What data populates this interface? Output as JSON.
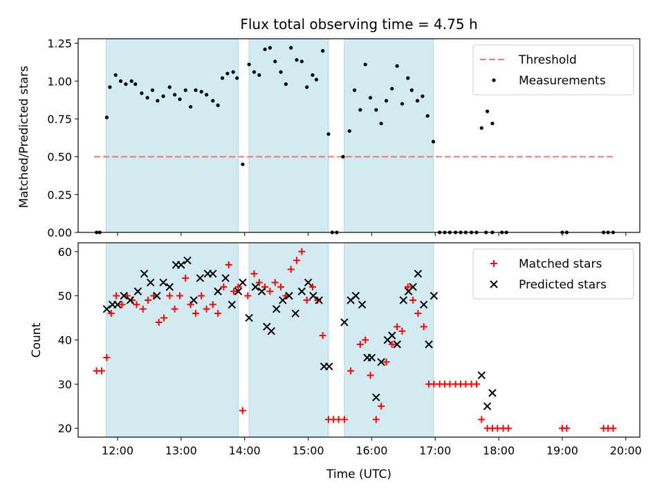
{
  "chart_data": {
    "title": "Flux total observing time = 4.75 h",
    "xlabel": "Time (UTC)",
    "x_ticks": [
      "12:00",
      "13:00",
      "14:00",
      "15:00",
      "16:00",
      "17:00",
      "18:00",
      "19:00",
      "20:00"
    ],
    "x_range_hours": [
      11.38,
      20.22
    ],
    "shaded_intervals_hours": [
      [
        11.82,
        13.9
      ],
      [
        14.07,
        15.32
      ],
      [
        15.57,
        16.97
      ]
    ],
    "shade_color": "#add8e6",
    "panels": [
      {
        "type": "scatter",
        "ylabel": "Matched/Predicted stars",
        "ylim": [
          0,
          1.28
        ],
        "y_ticks": [
          "0.00",
          "0.25",
          "0.50",
          "0.75",
          "1.00",
          "1.25"
        ],
        "legend_position": "upper right",
        "threshold": {
          "name": "Threshold",
          "value": 0.5,
          "x_range_hours": [
            11.63,
            19.83
          ],
          "color": "#ff6f6f"
        },
        "series": [
          {
            "name": "Measurements",
            "color": "#000000",
            "marker": "dot",
            "points": [
              [
                11.67,
                0.0
              ],
              [
                11.72,
                0.0
              ],
              [
                11.83,
                0.76
              ],
              [
                11.88,
                0.96
              ],
              [
                11.97,
                1.04
              ],
              [
                12.05,
                1.0
              ],
              [
                12.13,
                0.98
              ],
              [
                12.22,
                1.0
              ],
              [
                12.28,
                0.98
              ],
              [
                12.38,
                0.92
              ],
              [
                12.47,
                0.89
              ],
              [
                12.55,
                0.94
              ],
              [
                12.63,
                0.87
              ],
              [
                12.72,
                0.9
              ],
              [
                12.82,
                0.96
              ],
              [
                12.9,
                0.91
              ],
              [
                12.98,
                0.88
              ],
              [
                13.07,
                0.94
              ],
              [
                13.15,
                0.83
              ],
              [
                13.23,
                0.94
              ],
              [
                13.32,
                0.93
              ],
              [
                13.4,
                0.91
              ],
              [
                13.5,
                0.87
              ],
              [
                13.58,
                0.84
              ],
              [
                13.65,
                1.02
              ],
              [
                13.73,
                1.05
              ],
              [
                13.82,
                1.06
              ],
              [
                13.88,
                1.02
              ],
              [
                13.97,
                0.45
              ],
              [
                14.07,
                1.11
              ],
              [
                14.15,
                1.06
              ],
              [
                14.23,
                1.04
              ],
              [
                14.32,
                1.21
              ],
              [
                14.4,
                1.22
              ],
              [
                14.48,
                1.13
              ],
              [
                14.57,
                1.06
              ],
              [
                14.65,
                0.98
              ],
              [
                14.73,
                1.22
              ],
              [
                14.82,
                1.14
              ],
              [
                14.9,
                1.13
              ],
              [
                14.98,
                0.96
              ],
              [
                15.07,
                1.04
              ],
              [
                15.13,
                1.01
              ],
              [
                15.23,
                1.2
              ],
              [
                15.32,
                0.65
              ],
              [
                15.38,
                0.0
              ],
              [
                15.45,
                0.0
              ],
              [
                15.55,
                0.5
              ],
              [
                15.65,
                0.67
              ],
              [
                15.73,
                0.94
              ],
              [
                15.82,
                0.81
              ],
              [
                15.9,
                1.11
              ],
              [
                15.98,
                0.89
              ],
              [
                16.07,
                0.81
              ],
              [
                16.15,
                0.72
              ],
              [
                16.23,
                0.87
              ],
              [
                16.32,
                0.95
              ],
              [
                16.4,
                1.1
              ],
              [
                16.48,
                0.85
              ],
              [
                16.57,
                1.02
              ],
              [
                16.63,
                0.94
              ],
              [
                16.72,
                0.87
              ],
              [
                16.8,
                0.9
              ],
              [
                16.88,
                0.77
              ],
              [
                16.97,
                0.6
              ],
              [
                17.07,
                0.0
              ],
              [
                17.15,
                0.0
              ],
              [
                17.23,
                0.0
              ],
              [
                17.32,
                0.0
              ],
              [
                17.4,
                0.0
              ],
              [
                17.48,
                0.0
              ],
              [
                17.57,
                0.0
              ],
              [
                17.65,
                0.0
              ],
              [
                17.73,
                0.69
              ],
              [
                17.82,
                0.8
              ],
              [
                17.9,
                0.72
              ],
              [
                17.8,
                0.0
              ],
              [
                17.9,
                0.0
              ],
              [
                18.05,
                0.0
              ],
              [
                18.12,
                0.0
              ],
              [
                19.0,
                0.0
              ],
              [
                19.07,
                0.0
              ],
              [
                19.65,
                0.0
              ],
              [
                19.72,
                0.0
              ],
              [
                19.8,
                0.0
              ]
            ]
          }
        ]
      },
      {
        "type": "scatter",
        "ylabel": "Count",
        "ylim": [
          18,
          62
        ],
        "y_ticks": [
          "20",
          "30",
          "40",
          "50",
          "60"
        ],
        "legend_position": "upper right",
        "series": [
          {
            "name": "Matched stars",
            "color": "#ff0000",
            "marker": "plus",
            "points": [
              [
                11.67,
                33
              ],
              [
                11.75,
                33
              ],
              [
                11.83,
                36
              ],
              [
                11.9,
                46
              ],
              [
                11.98,
                50
              ],
              [
                12.07,
                48
              ],
              [
                12.15,
                50
              ],
              [
                12.23,
                49
              ],
              [
                12.3,
                48
              ],
              [
                12.4,
                47
              ],
              [
                12.48,
                49
              ],
              [
                12.57,
                50
              ],
              [
                12.65,
                44
              ],
              [
                12.73,
                45
              ],
              [
                12.82,
                50
              ],
              [
                12.9,
                47
              ],
              [
                12.98,
                50
              ],
              [
                13.07,
                54
              ],
              [
                13.15,
                48
              ],
              [
                13.23,
                46
              ],
              [
                13.32,
                50
              ],
              [
                13.4,
                47
              ],
              [
                13.5,
                48
              ],
              [
                13.58,
                46
              ],
              [
                13.67,
                52
              ],
              [
                13.75,
                57
              ],
              [
                13.83,
                51
              ],
              [
                13.9,
                52
              ],
              [
                13.97,
                24
              ],
              [
                14.05,
                50
              ],
              [
                14.15,
                55
              ],
              [
                14.23,
                53
              ],
              [
                14.32,
                52
              ],
              [
                14.4,
                51
              ],
              [
                14.48,
                53
              ],
              [
                14.57,
                52
              ],
              [
                14.65,
                50
              ],
              [
                14.73,
                56
              ],
              [
                14.82,
                58
              ],
              [
                14.9,
                60
              ],
              [
                14.98,
                49
              ],
              [
                15.07,
                52
              ],
              [
                15.15,
                49
              ],
              [
                15.23,
                41
              ],
              [
                15.32,
                22
              ],
              [
                15.4,
                22
              ],
              [
                15.48,
                22
              ],
              [
                15.57,
                22
              ],
              [
                15.67,
                33
              ],
              [
                15.82,
                39
              ],
              [
                15.9,
                40
              ],
              [
                15.98,
                32
              ],
              [
                16.07,
                22
              ],
              [
                16.15,
                25
              ],
              [
                16.23,
                35
              ],
              [
                16.32,
                39
              ],
              [
                16.4,
                43
              ],
              [
                16.48,
                42
              ],
              [
                16.57,
                52
              ],
              [
                16.65,
                49
              ],
              [
                16.73,
                46
              ],
              [
                16.82,
                43
              ],
              [
                16.9,
                30
              ],
              [
                16.98,
                30
              ],
              [
                17.07,
                30
              ],
              [
                17.15,
                30
              ],
              [
                17.23,
                30
              ],
              [
                17.32,
                30
              ],
              [
                17.4,
                30
              ],
              [
                17.48,
                30
              ],
              [
                17.57,
                30
              ],
              [
                17.65,
                30
              ],
              [
                17.73,
                22
              ],
              [
                17.82,
                20
              ],
              [
                17.9,
                20
              ],
              [
                17.98,
                20
              ],
              [
                18.07,
                20
              ],
              [
                18.15,
                20
              ],
              [
                19.0,
                20
              ],
              [
                19.07,
                20
              ],
              [
                19.65,
                20
              ],
              [
                19.72,
                20
              ],
              [
                19.8,
                20
              ]
            ]
          },
          {
            "name": "Predicted stars",
            "color": "#000000",
            "marker": "x",
            "points": [
              [
                11.83,
                47
              ],
              [
                11.92,
                48
              ],
              [
                12.0,
                48
              ],
              [
                12.1,
                50
              ],
              [
                12.2,
                49
              ],
              [
                12.32,
                51
              ],
              [
                12.42,
                55
              ],
              [
                12.52,
                53
              ],
              [
                12.62,
                50
              ],
              [
                12.72,
                53
              ],
              [
                12.82,
                52
              ],
              [
                12.92,
                57
              ],
              [
                13.0,
                57
              ],
              [
                13.1,
                58
              ],
              [
                13.2,
                49
              ],
              [
                13.3,
                54
              ],
              [
                13.42,
                55
              ],
              [
                13.5,
                55
              ],
              [
                13.58,
                51
              ],
              [
                13.7,
                54
              ],
              [
                13.8,
                48
              ],
              [
                13.9,
                51
              ],
              [
                13.97,
                53
              ],
              [
                14.07,
                45
              ],
              [
                14.17,
                52
              ],
              [
                14.27,
                51
              ],
              [
                14.35,
                43
              ],
              [
                14.42,
                42
              ],
              [
                14.5,
                47
              ],
              [
                14.6,
                49
              ],
              [
                14.7,
                50
              ],
              [
                14.8,
                46
              ],
              [
                14.9,
                51
              ],
              [
                15.0,
                53
              ],
              [
                15.08,
                50
              ],
              [
                15.17,
                49
              ],
              [
                15.25,
                34
              ],
              [
                15.33,
                34
              ],
              [
                15.57,
                44
              ],
              [
                15.67,
                49
              ],
              [
                15.75,
                50
              ],
              [
                15.85,
                48
              ],
              [
                15.93,
                36
              ],
              [
                16.0,
                36
              ],
              [
                16.07,
                27
              ],
              [
                16.15,
                35
              ],
              [
                16.25,
                40
              ],
              [
                16.32,
                41
              ],
              [
                16.4,
                39
              ],
              [
                16.5,
                49
              ],
              [
                16.58,
                51
              ],
              [
                16.65,
                52
              ],
              [
                16.73,
                55
              ],
              [
                16.82,
                48
              ],
              [
                16.9,
                39
              ],
              [
                16.98,
                50
              ],
              [
                17.73,
                32
              ],
              [
                17.82,
                25
              ],
              [
                17.9,
                28
              ]
            ]
          }
        ]
      }
    ]
  }
}
